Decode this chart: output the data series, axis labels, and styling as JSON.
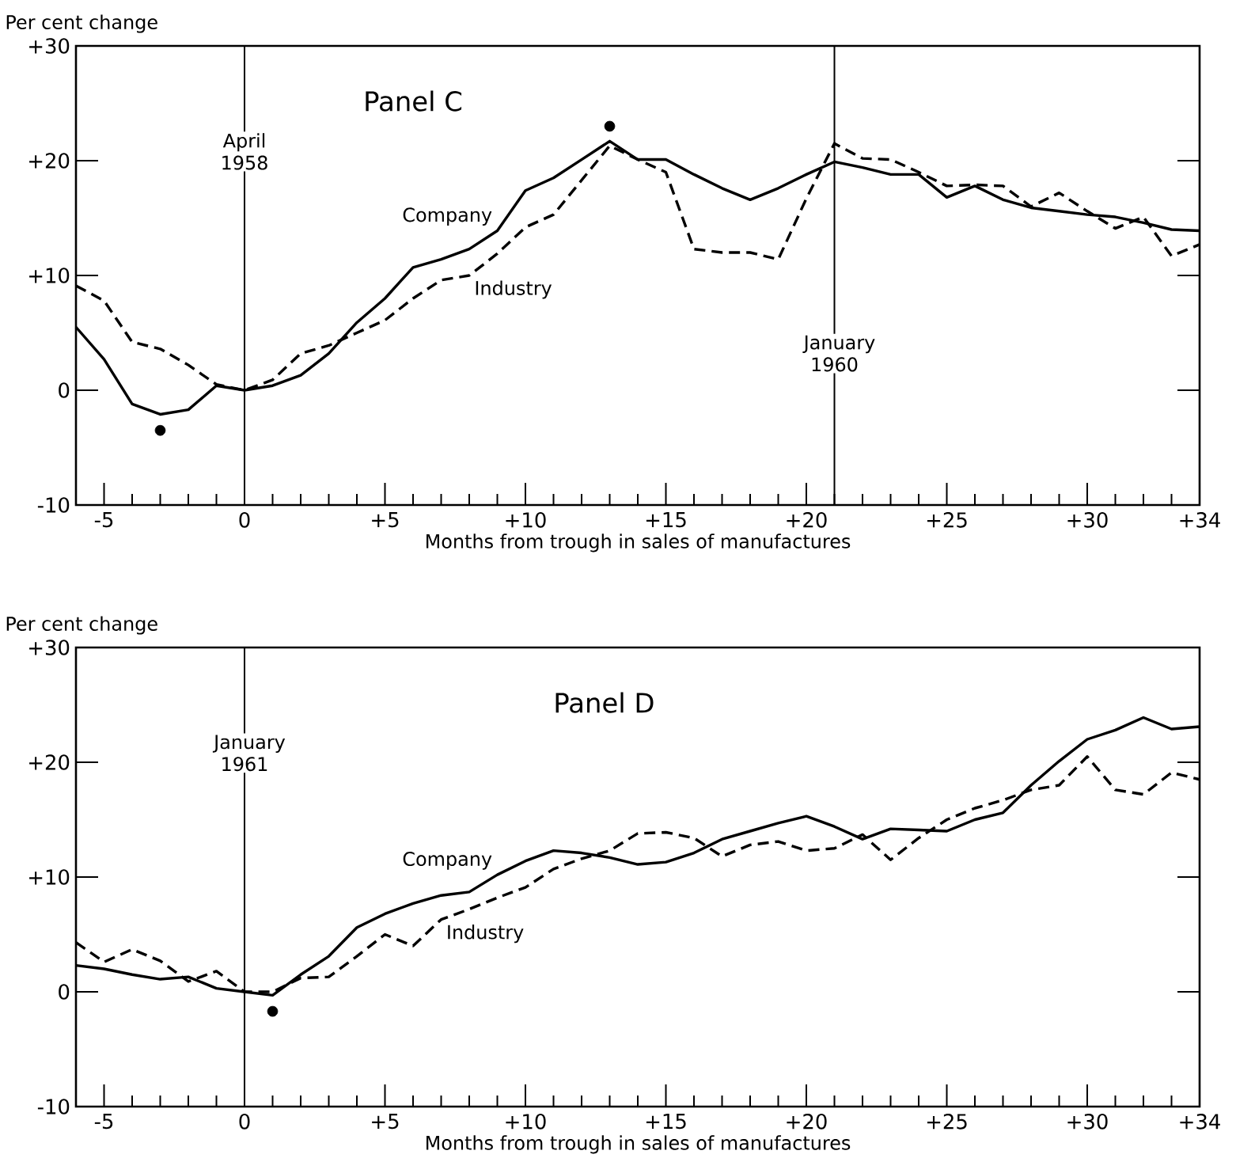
{
  "chart_data": [
    {
      "type": "line",
      "title": "Panel C",
      "xlabel": "Months from trough in sales of manufactures",
      "ylabel": "Per cent change",
      "x": [
        -6,
        -5,
        -4,
        -3,
        -2,
        -1,
        0,
        1,
        2,
        3,
        4,
        5,
        6,
        7,
        8,
        9,
        10,
        11,
        12,
        13,
        14,
        15,
        16,
        17,
        18,
        19,
        20,
        21,
        22,
        23,
        24,
        25,
        26,
        27,
        28,
        29,
        30,
        31,
        32,
        33,
        34
      ],
      "xlim": [
        -6,
        34
      ],
      "ylim": [
        -10,
        30
      ],
      "xticks": [
        {
          "value": -5,
          "label": "-5"
        },
        0,
        {
          "value": 5,
          "label": "+5"
        },
        {
          "value": 10,
          "label": "+10"
        },
        {
          "value": 15,
          "label": "+15"
        },
        {
          "value": 20,
          "label": "+20"
        },
        {
          "value": 25,
          "label": "+25"
        },
        {
          "value": 30,
          "label": "+30"
        },
        {
          "value": 34,
          "label": "+34"
        }
      ],
      "yticks": [
        {
          "value": -10,
          "label": "-10"
        },
        0,
        {
          "value": 10,
          "label": "+10"
        },
        {
          "value": 20,
          "label": "+20"
        },
        {
          "value": 30,
          "label": "+30"
        }
      ],
      "legend": false,
      "grid": false,
      "series": [
        {
          "name": "Company",
          "color": "#000000",
          "line_style": "solid",
          "values": [
            5.5,
            2.7,
            -1.2,
            -2.1,
            -1.7,
            0.4,
            0,
            0.4,
            1.3,
            3.2,
            5.9,
            8,
            10.7,
            11.4,
            12.3,
            13.9,
            17.4,
            18.5,
            20.1,
            21.7,
            20.1,
            20.1,
            18.8,
            17.6,
            16.6,
            17.6,
            18.8,
            19.9,
            19.4,
            18.8,
            18.8,
            16.8,
            17.8,
            16.6,
            15.9,
            15.6,
            15.3,
            15.1,
            14.6,
            14.0,
            13.9
          ]
        },
        {
          "name": "Industry",
          "color": "#000000",
          "line_style": "dashed",
          "values": [
            9.1,
            7.8,
            4.2,
            3.6,
            2.2,
            0.5,
            0,
            0.9,
            3.2,
            3.9,
            5.0,
            6.1,
            8.0,
            9.6,
            10.0,
            11.9,
            14.2,
            15.3,
            18.3,
            21.3,
            20.1,
            19.0,
            12.3,
            12.0,
            12.0,
            11.4,
            16.7,
            21.5,
            20.2,
            20.1,
            19.0,
            17.8,
            17.9,
            17.8,
            16.0,
            17.2,
            15.6,
            14.1,
            15.1,
            11.7,
            12.7
          ]
        },
        {
          "type": "scatter",
          "marker": "circle",
          "color": "#000000",
          "x": [
            -3,
            13
          ],
          "values": [
            -3.5,
            23.0
          ]
        }
      ],
      "ref_lines": [
        {
          "axis": "x",
          "value": 0,
          "label": "April 1958"
        },
        {
          "axis": "x",
          "value": 21,
          "label": "January 1960"
        }
      ]
    },
    {
      "type": "line",
      "title": "Panel D",
      "xlabel": "Months from trough in sales of manufactures",
      "ylabel": "Per cent change",
      "x": [
        -6,
        -5,
        -4,
        -3,
        -2,
        -1,
        0,
        1,
        2,
        3,
        4,
        5,
        6,
        7,
        8,
        9,
        10,
        11,
        12,
        13,
        14,
        15,
        16,
        17,
        18,
        19,
        20,
        21,
        22,
        23,
        24,
        25,
        26,
        27,
        28,
        29,
        30,
        31,
        32,
        33,
        34
      ],
      "xlim": [
        -6,
        34
      ],
      "ylim": [
        -10,
        30
      ],
      "xticks": [
        {
          "value": -5,
          "label": "-5"
        },
        0,
        {
          "value": 5,
          "label": "+5"
        },
        {
          "value": 10,
          "label": "+10"
        },
        {
          "value": 15,
          "label": "+15"
        },
        {
          "value": 20,
          "label": "+20"
        },
        {
          "value": 25,
          "label": "+25"
        },
        {
          "value": 30,
          "label": "+30"
        },
        {
          "value": 34,
          "label": "+34"
        }
      ],
      "yticks": [
        {
          "value": -10,
          "label": "-10"
        },
        0,
        {
          "value": 10,
          "label": "+10"
        },
        {
          "value": 20,
          "label": "+20"
        },
        {
          "value": 30,
          "label": "+30"
        }
      ],
      "legend": false,
      "grid": false,
      "series": [
        {
          "name": "Company",
          "color": "#000000",
          "line_style": "solid",
          "values": [
            2.3,
            2.0,
            1.5,
            1.1,
            1.3,
            0.3,
            0,
            -0.3,
            1.5,
            3.1,
            5.6,
            6.8,
            7.7,
            8.4,
            8.7,
            10.2,
            11.4,
            12.3,
            12.1,
            11.7,
            11.1,
            11.3,
            12.1,
            13.3,
            14.0,
            14.7,
            15.3,
            14.4,
            13.3,
            14.2,
            14.1,
            14.0,
            15.0,
            15.6,
            18.0,
            20.1,
            22.0,
            22.8,
            23.9,
            22.9,
            23.1
          ]
        },
        {
          "name": "Industry",
          "color": "#000000",
          "line_style": "dashed",
          "values": [
            4.3,
            2.6,
            3.7,
            2.7,
            0.9,
            1.8,
            0,
            0,
            1.2,
            1.3,
            3.1,
            5.0,
            4.0,
            6.3,
            7.2,
            8.2,
            9.1,
            10.7,
            11.6,
            12.3,
            13.8,
            13.9,
            13.4,
            11.8,
            12.8,
            13.1,
            12.3,
            12.5,
            13.7,
            11.5,
            13.4,
            15.0,
            16.0,
            16.7,
            17.6,
            18.0,
            20.5,
            17.6,
            17.2,
            19.1,
            18.5
          ]
        },
        {
          "type": "scatter",
          "marker": "circle",
          "color": "#000000",
          "x": [
            1
          ],
          "values": [
            -1.7
          ]
        }
      ],
      "ref_lines": [
        {
          "axis": "x",
          "value": 0,
          "label": "January 1961"
        }
      ]
    }
  ]
}
